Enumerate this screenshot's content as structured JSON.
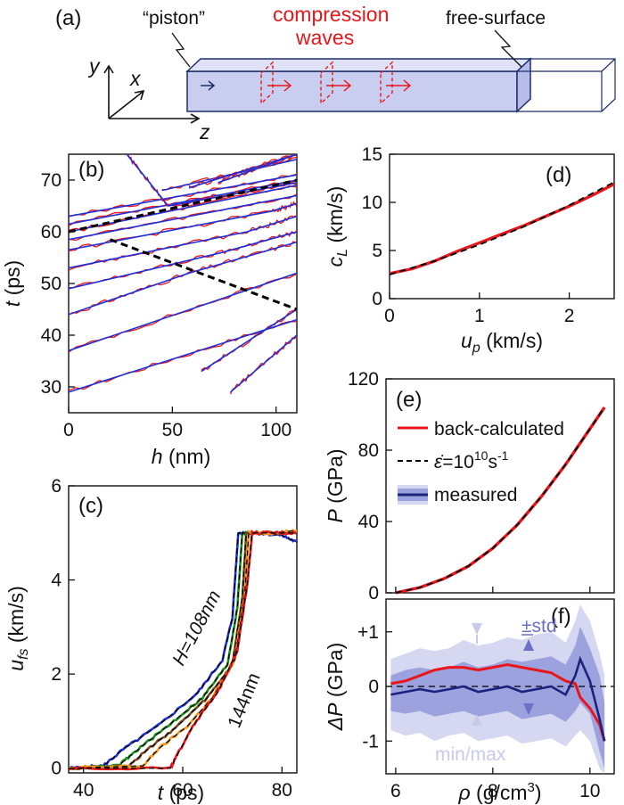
{
  "schematic": {
    "letter": "(a)",
    "piston_label": "“piston”",
    "compression_label_1": "compression",
    "compression_label_2": "waves",
    "free_surface_label": "free-surface",
    "axis_y": "y",
    "axis_x": "x",
    "axis_z": "z",
    "colors": {
      "slab": "#c9cdf0",
      "edge": "#1d2f6b",
      "wave": "#e8161a"
    }
  },
  "chart_data": [
    {
      "panel": "(b)",
      "type": "line",
      "xlabel_main": "h",
      "xlabel_unit": " (nm)",
      "ylabel_main": "t",
      "ylabel_unit": " (ps)",
      "xlim": [
        0,
        110
      ],
      "ylim": [
        25,
        75
      ],
      "xticks": [
        0,
        50,
        100
      ],
      "yticks": [
        30,
        40,
        50,
        60,
        70
      ],
      "contour_lines": [
        {
          "x": [
            0,
            110
          ],
          "y": [
            29,
            43
          ]
        },
        {
          "x": [
            0,
            110
          ],
          "y": [
            37,
            52
          ]
        },
        {
          "x": [
            0,
            58,
            110
          ],
          "y": [
            44,
            52,
            58
          ]
        },
        {
          "x": [
            0,
            74,
            110
          ],
          "y": [
            49,
            56,
            60
          ]
        },
        {
          "x": [
            0,
            86,
            110
          ],
          "y": [
            53,
            60,
            63
          ]
        },
        {
          "x": [
            0,
            98,
            110
          ],
          "y": [
            56.5,
            64,
            65.5
          ]
        },
        {
          "x": [
            0,
            110
          ],
          "y": [
            58.5,
            67
          ]
        },
        {
          "x": [
            0,
            110
          ],
          "y": [
            60,
            69
          ]
        },
        {
          "x": [
            0,
            110
          ],
          "y": [
            61.5,
            70
          ]
        },
        {
          "x": [
            0,
            110
          ],
          "y": [
            63,
            71
          ]
        },
        {
          "x": [
            45,
            110
          ],
          "y": [
            68,
            74
          ]
        },
        {
          "x": [
            58,
            110
          ],
          "y": [
            68.5,
            75
          ]
        },
        {
          "x": [
            72,
            110
          ],
          "y": [
            69.5,
            75
          ]
        },
        {
          "x": [
            28,
            48,
            110
          ],
          "y": [
            75,
            65,
            69.5
          ]
        },
        {
          "x": [
            64,
            110
          ],
          "y": [
            33,
            45
          ]
        },
        {
          "x": [
            78,
            110
          ],
          "y": [
            29,
            40
          ]
        }
      ],
      "dashed_lines": [
        {
          "x": [
            0,
            110
          ],
          "y": [
            60,
            70
          ]
        },
        {
          "x": [
            20,
            110
          ],
          "y": [
            58.5,
            45
          ]
        }
      ],
      "line_colors": {
        "measured": "#e8161a",
        "fit": "#1f2fd6",
        "dash": "#000000"
      }
    },
    {
      "panel": "(c)",
      "type": "line",
      "xlabel_main": "t",
      "xlabel_unit": " (ps)",
      "ylabel_main": "u",
      "ylabel_sub": "fs",
      "ylabel_unit": " (km/s)",
      "xlim": [
        37,
        83
      ],
      "ylim": [
        -0.1,
        6
      ],
      "xticks": [
        40,
        60,
        80
      ],
      "yticks": [
        0,
        2,
        4,
        6
      ],
      "annotation_1": "H=108nm",
      "annotation_2": "144nm",
      "series": [
        {
          "color": "#1f2fd6",
          "t": [
            37,
            44,
            48,
            55,
            63,
            68,
            70,
            71.2,
            75,
            80,
            83
          ],
          "u": [
            0,
            0.05,
            0.4,
            0.9,
            1.6,
            2.3,
            3.2,
            5.0,
            5.0,
            4.95,
            4.8
          ]
        },
        {
          "color": "#1a8f1a",
          "t": [
            37,
            47,
            51,
            57,
            64,
            69,
            71,
            72,
            76,
            83
          ],
          "u": [
            0,
            0.05,
            0.4,
            0.9,
            1.5,
            2.2,
            3.4,
            5.0,
            5.0,
            5.0
          ]
        },
        {
          "color": "#7a4a1f",
          "t": [
            37,
            49,
            53,
            59,
            65,
            70,
            72,
            72.8,
            77,
            83
          ],
          "u": [
            0,
            0.05,
            0.4,
            0.9,
            1.5,
            2.2,
            3.6,
            5.0,
            5.0,
            5.0
          ]
        },
        {
          "color": "#f39a1a",
          "t": [
            37,
            52,
            55,
            61,
            66,
            70.5,
            72.5,
            73.3,
            78,
            83
          ],
          "u": [
            0,
            0.05,
            0.4,
            0.9,
            1.5,
            2.3,
            3.7,
            5.0,
            5.0,
            5.05
          ]
        },
        {
          "color": "#e8161a",
          "t": [
            37,
            57.5,
            59,
            62,
            67,
            71,
            73,
            74,
            79,
            83
          ],
          "u": [
            0,
            0.0,
            0.3,
            0.9,
            1.6,
            2.5,
            3.9,
            5.0,
            5.0,
            5.0
          ]
        }
      ]
    },
    {
      "panel": "(d)",
      "type": "line",
      "xlabel_main": "u",
      "xlabel_sub": "p",
      "xlabel_unit": " (km/s)",
      "ylabel_main": "c",
      "ylabel_sub": "L",
      "ylabel_unit": " (km/s)",
      "xlim": [
        0,
        2.5
      ],
      "ylim": [
        0,
        15
      ],
      "xticks": [
        0,
        1,
        2
      ],
      "yticks": [
        0,
        5,
        10,
        15
      ],
      "series": [
        {
          "style": "solid",
          "color": "#e8161a",
          "x": [
            0,
            0.25,
            0.5,
            0.75,
            1.0,
            1.25,
            1.5,
            1.75,
            2.0,
            2.25,
            2.5
          ],
          "y": [
            2.6,
            3.1,
            3.9,
            4.9,
            5.8,
            6.7,
            7.6,
            8.6,
            9.6,
            10.7,
            11.9
          ]
        },
        {
          "style": "dashed",
          "color": "#000000",
          "x": [
            0,
            0.5,
            1.0,
            1.5,
            2.0,
            2.5
          ],
          "y": [
            2.5,
            3.9,
            5.6,
            7.5,
            9.7,
            12.1
          ]
        }
      ]
    },
    {
      "panel": "(e)",
      "type": "line",
      "ylabel_main": "P",
      "ylabel_unit": " (GPa)",
      "xlim": [
        5.8,
        10.5
      ],
      "ylim": [
        0,
        120
      ],
      "yticks": [
        0,
        40,
        80,
        120
      ],
      "legend": {
        "back": "back-calculated",
        "rate_prefix": "=10",
        "rate_exp": "10",
        "rate_unit": "s",
        "rate_unit_exp": "-1",
        "measured": "measured"
      },
      "series": [
        {
          "style": "solid",
          "color": "#e8161a",
          "x": [
            6.0,
            6.5,
            7.0,
            7.5,
            8.0,
            8.5,
            9.0,
            9.5,
            10.0,
            10.3
          ],
          "y": [
            0,
            3,
            8,
            15,
            25,
            38,
            54,
            72,
            92,
            104
          ]
        },
        {
          "style": "dashed",
          "color": "#000000",
          "x": [
            6.0,
            6.5,
            7.0,
            7.5,
            8.0,
            8.5,
            9.0,
            9.5,
            10.0,
            10.3
          ],
          "y": [
            0,
            3,
            8,
            15,
            25,
            38,
            54,
            72,
            92,
            104
          ]
        }
      ]
    },
    {
      "panel": "(f)",
      "type": "area",
      "xlabel_main": "ρ",
      "xlabel_unit": " (g/cm",
      "xlabel_exp": "3",
      "xlabel_end": ")",
      "ylabel_main": "ΔP",
      "ylabel_unit": " (GPa)",
      "xlim": [
        5.8,
        10.5
      ],
      "ylim": [
        -1.6,
        1.6
      ],
      "xticks": [
        6,
        8,
        10
      ],
      "yticks": [
        -1,
        0,
        1
      ],
      "ytick_labels": [
        "-1",
        "0",
        "+1"
      ],
      "annotation_std": "±std",
      "annotation_minmax": "min/max",
      "x": [
        5.9,
        6.2,
        6.5,
        6.8,
        7.1,
        7.4,
        7.7,
        8.0,
        8.3,
        8.6,
        8.9,
        9.2,
        9.5,
        9.7,
        9.8,
        10.0,
        10.2,
        10.3
      ],
      "measured": [
        -0.15,
        -0.1,
        -0.05,
        -0.1,
        -0.05,
        0.0,
        -0.1,
        -0.05,
        0.0,
        -0.1,
        -0.05,
        0.0,
        -0.15,
        0.2,
        0.5,
        0.1,
        -0.6,
        -1.0
      ],
      "back_calculated": [
        0.05,
        0.1,
        0.2,
        0.3,
        0.35,
        0.35,
        0.3,
        0.35,
        0.4,
        0.35,
        0.3,
        0.25,
        0.1,
        0.05,
        -0.2,
        -0.4,
        -0.7,
        -1.0
      ],
      "std_lo": [
        -0.45,
        -0.5,
        -0.45,
        -0.55,
        -0.5,
        -0.45,
        -0.55,
        -0.5,
        -0.45,
        -0.6,
        -0.55,
        -0.5,
        -0.65,
        -0.45,
        -0.3,
        -0.5,
        -1.2,
        -1.5
      ],
      "std_hi": [
        0.2,
        0.3,
        0.35,
        0.3,
        0.35,
        0.45,
        0.35,
        0.4,
        0.5,
        0.45,
        0.5,
        0.55,
        0.4,
        0.75,
        1.1,
        0.7,
        0.2,
        -0.3
      ],
      "mm_lo": [
        -0.8,
        -0.9,
        -0.85,
        -1.0,
        -0.9,
        -0.85,
        -1.0,
        -0.95,
        -0.9,
        -1.05,
        -1.0,
        -0.95,
        -1.1,
        -0.9,
        -0.8,
        -1.0,
        -1.5,
        -1.6
      ],
      "mm_hi": [
        0.5,
        0.6,
        0.7,
        0.65,
        0.7,
        0.85,
        0.75,
        0.8,
        0.9,
        0.85,
        0.95,
        1.0,
        0.8,
        1.2,
        1.5,
        1.2,
        0.6,
        0.2
      ],
      "colors": {
        "minmax": "#d6d8f2",
        "std": "#9ca2dd",
        "measured": "#1a237e",
        "back": "#e8161a"
      }
    }
  ]
}
